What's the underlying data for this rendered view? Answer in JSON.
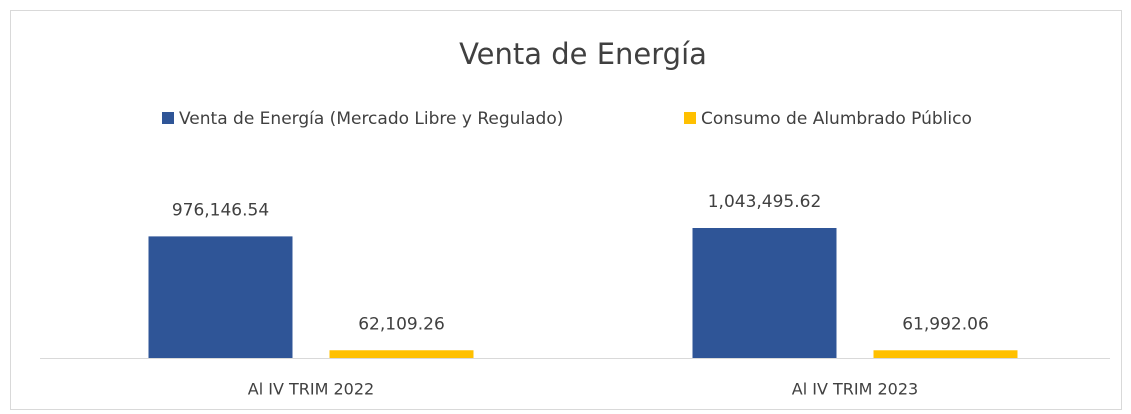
{
  "chart_data": {
    "type": "bar",
    "title": "Venta de Energía",
    "categories": [
      "Al IV TRIM 2022",
      "Al IV TRIM 2023"
    ],
    "series": [
      {
        "name": "Venta de Energía (Mercado Libre y Regulado)",
        "color": "#2f5597",
        "values": [
          976146.54,
          1043495.62
        ],
        "value_labels": [
          "976,146.54",
          "1,043,495.62"
        ]
      },
      {
        "name": "Consumo de Alumbrado Público",
        "color": "#ffc000",
        "values": [
          62109.26,
          61992.06
        ],
        "value_labels": [
          "62,109.26",
          "61,992.06"
        ]
      }
    ],
    "legend": "top"
  }
}
